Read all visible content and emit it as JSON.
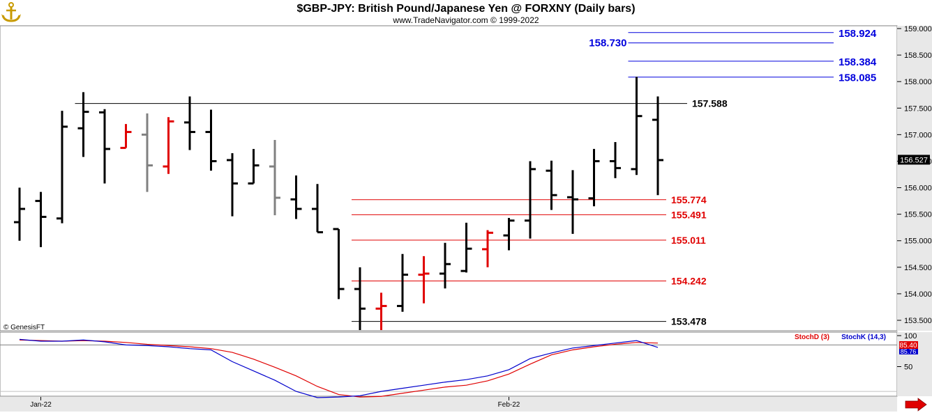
{
  "header": {
    "title": "$GBP-JPY:  British Pound/Japanese Yen @ FORXNY  (Daily bars)",
    "subtitle": "www.TradeNavigator.com © 1999-2022",
    "logo_icon": "anchor-icon"
  },
  "footer": {
    "copyright": "© GenesisFT",
    "scroll_icon": "arrow-right-icon"
  },
  "colors": {
    "bar_up": "#000000",
    "bar_highlight": "#e00000",
    "bar_inside": "#808080",
    "level_blue": "#0000dd",
    "level_red": "#e00000",
    "level_black": "#000000",
    "stoch_d": "#e00000",
    "stoch_k": "#0000cc",
    "arrow": "#e00000"
  },
  "chart_data": [
    {
      "type": "ohlc",
      "x_labels": [
        {
          "index": 1,
          "label": "Jan-22"
        },
        {
          "index": 23,
          "label": "Feb-22"
        }
      ],
      "y_ticks": [
        "153.500",
        "154.000",
        "154.500",
        "155.000",
        "155.500",
        "156.000",
        "156.500",
        "157.000",
        "157.500",
        "158.000",
        "158.500",
        "159.000"
      ],
      "ylim": [
        153.28,
        159.1
      ],
      "last_price": "156.527",
      "bars": [
        {
          "o": 155.35,
          "h": 156.0,
          "l": 155.0,
          "c": 155.6,
          "color": "up"
        },
        {
          "o": 155.75,
          "h": 155.92,
          "l": 154.88,
          "c": 155.45,
          "color": "up"
        },
        {
          "o": 155.42,
          "h": 157.45,
          "l": 155.33,
          "c": 157.15,
          "color": "up"
        },
        {
          "o": 157.12,
          "h": 157.8,
          "l": 156.58,
          "c": 157.43,
          "color": "up"
        },
        {
          "o": 157.42,
          "h": 157.48,
          "l": 156.08,
          "c": 156.73,
          "color": "up"
        },
        {
          "o": 156.75,
          "h": 157.2,
          "l": 156.75,
          "c": 157.05,
          "color": "highlight"
        },
        {
          "o": 157.0,
          "h": 157.4,
          "l": 155.92,
          "c": 156.42,
          "color": "inside"
        },
        {
          "o": 156.4,
          "h": 157.33,
          "l": 156.26,
          "c": 157.25,
          "color": "highlight"
        },
        {
          "o": 157.23,
          "h": 157.72,
          "l": 156.71,
          "c": 157.05,
          "color": "up"
        },
        {
          "o": 157.05,
          "h": 157.47,
          "l": 156.32,
          "c": 156.5,
          "color": "up"
        },
        {
          "o": 156.52,
          "h": 156.65,
          "l": 155.46,
          "c": 156.08,
          "color": "up"
        },
        {
          "o": 156.08,
          "h": 156.73,
          "l": 156.08,
          "c": 156.42,
          "color": "up"
        },
        {
          "o": 156.4,
          "h": 156.9,
          "l": 155.48,
          "c": 155.81,
          "color": "inside"
        },
        {
          "o": 155.78,
          "h": 156.23,
          "l": 155.41,
          "c": 155.6,
          "color": "up"
        },
        {
          "o": 155.6,
          "h": 156.07,
          "l": 155.16,
          "c": 155.16,
          "color": "up"
        },
        {
          "o": 155.22,
          "h": 155.22,
          "l": 153.9,
          "c": 154.09,
          "color": "up"
        },
        {
          "o": 154.09,
          "h": 154.5,
          "l": 153.2,
          "c": 153.72,
          "color": "up"
        },
        {
          "o": 153.72,
          "h": 154.02,
          "l": 153.2,
          "c": 153.77,
          "color": "highlight"
        },
        {
          "o": 153.77,
          "h": 154.75,
          "l": 153.66,
          "c": 154.36,
          "color": "up"
        },
        {
          "o": 154.36,
          "h": 154.71,
          "l": 153.82,
          "c": 154.38,
          "color": "highlight"
        },
        {
          "o": 154.38,
          "h": 154.96,
          "l": 154.1,
          "c": 154.56,
          "color": "up"
        },
        {
          "o": 154.43,
          "h": 155.34,
          "l": 154.4,
          "c": 154.85,
          "color": "up"
        },
        {
          "o": 154.84,
          "h": 155.2,
          "l": 154.5,
          "c": 155.15,
          "color": "highlight"
        },
        {
          "o": 155.1,
          "h": 155.43,
          "l": 154.82,
          "c": 155.38,
          "color": "up"
        },
        {
          "o": 155.38,
          "h": 156.5,
          "l": 155.04,
          "c": 156.35,
          "color": "up"
        },
        {
          "o": 156.32,
          "h": 156.51,
          "l": 155.58,
          "c": 155.86,
          "color": "up"
        },
        {
          "o": 155.82,
          "h": 156.33,
          "l": 155.13,
          "c": 155.78,
          "color": "up"
        },
        {
          "o": 155.8,
          "h": 156.73,
          "l": 155.65,
          "c": 156.5,
          "color": "up"
        },
        {
          "o": 156.5,
          "h": 156.86,
          "l": 156.18,
          "c": 156.37,
          "color": "up"
        },
        {
          "o": 156.35,
          "h": 158.09,
          "l": 156.24,
          "c": 157.35,
          "color": "up"
        },
        {
          "o": 157.28,
          "h": 157.72,
          "l": 155.86,
          "c": 156.52,
          "color": "up"
        }
      ],
      "levels": [
        {
          "value": 158.924,
          "label": "158.924",
          "color": "blue",
          "start": 29
        },
        {
          "value": 158.73,
          "label": "158.730",
          "color": "blue",
          "start": 29,
          "label_left": true
        },
        {
          "value": 158.384,
          "label": "158.384",
          "color": "blue",
          "start": 29
        },
        {
          "value": 158.085,
          "label": "158.085",
          "color": "blue",
          "start": 29
        },
        {
          "value": 157.588,
          "label": "157.588",
          "color": "black",
          "start": 3
        },
        {
          "value": 155.774,
          "label": "155.774",
          "color": "red",
          "start": 16
        },
        {
          "value": 155.491,
          "label": "155.491",
          "color": "red",
          "start": 16
        },
        {
          "value": 155.011,
          "label": "155.011",
          "color": "red",
          "start": 16
        },
        {
          "value": 154.242,
          "label": "154.242",
          "color": "red",
          "start": 16
        },
        {
          "value": 153.478,
          "label": "153.478",
          "color": "black",
          "start": 16
        }
      ]
    },
    {
      "type": "line",
      "legend": [
        {
          "name": "StochD (3)",
          "color": "red"
        },
        {
          "name": "StochK (14,3)",
          "color": "blue"
        }
      ],
      "y_ticks": [
        "50",
        "100"
      ],
      "ylim": [
        0,
        100
      ],
      "readout": "85.40",
      "readout_hidden": "85.76",
      "reference_line": 85,
      "series": [
        {
          "name": "StochD (3)",
          "color": "red",
          "values": [
            93,
            92,
            91,
            92,
            91,
            89,
            86,
            84,
            82,
            79,
            73,
            62,
            49,
            35,
            18,
            5,
            1,
            2,
            7,
            12,
            17,
            20,
            27,
            38,
            54,
            69,
            77,
            82,
            86,
            89,
            88
          ]
        },
        {
          "name": "StochK (14,3)",
          "color": "blue",
          "values": [
            94,
            91,
            91,
            93,
            90,
            85,
            84,
            82,
            79,
            77,
            58,
            43,
            28,
            10,
            0,
            1,
            3,
            10,
            15,
            20,
            25,
            29,
            35,
            45,
            63,
            72,
            80,
            84,
            88,
            92,
            81
          ]
        }
      ]
    }
  ]
}
